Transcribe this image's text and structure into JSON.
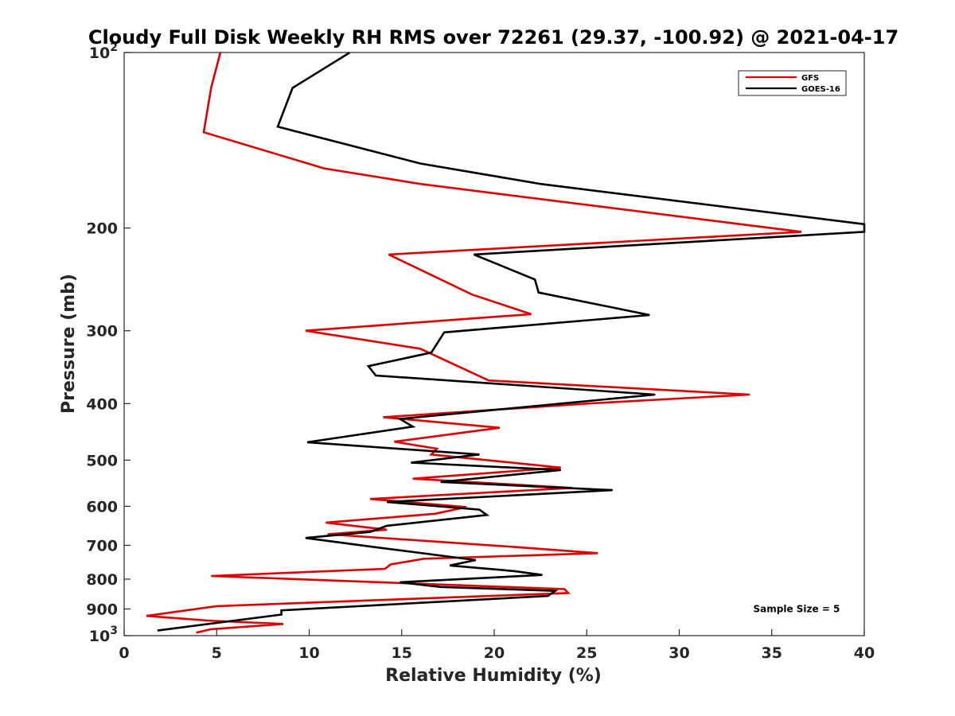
{
  "chart_data": {
    "type": "line",
    "title": "Cloudy Full Disk Weekly RH RMS over 72261 (29.37, -100.92) @ 2021-04-17",
    "xlabel": "Relative Humidity (%)",
    "ylabel": "Pressure (mb)",
    "xlim": [
      0,
      40
    ],
    "ylim": [
      100,
      1000
    ],
    "y_scale": "log",
    "y_reversed": true,
    "grid": false,
    "legend_position": "top-right",
    "x_ticks": [
      "0",
      "5",
      "10",
      "15",
      "20",
      "25",
      "30",
      "35",
      "40"
    ],
    "x_tick_values": [
      0,
      5,
      10,
      15,
      20,
      25,
      30,
      35,
      40
    ],
    "y_ticks": [
      {
        "value": 100,
        "base": "10",
        "exp": "2",
        "label": ""
      },
      {
        "value": 200,
        "label": "200"
      },
      {
        "value": 300,
        "label": "300"
      },
      {
        "value": 400,
        "label": "400"
      },
      {
        "value": 500,
        "label": "500"
      },
      {
        "value": 600,
        "label": "600"
      },
      {
        "value": 700,
        "label": "700"
      },
      {
        "value": 800,
        "label": "800"
      },
      {
        "value": 900,
        "label": "900"
      },
      {
        "value": 1000,
        "base": "10",
        "exp": "3",
        "label": ""
      }
    ],
    "series": [
      {
        "name": "GFS",
        "color": "#e00000",
        "points": [
          [
            5.2,
            100
          ],
          [
            4.7,
            115
          ],
          [
            4.3,
            137
          ],
          [
            10.8,
            158
          ],
          [
            16.0,
            168
          ],
          [
            36.6,
            203
          ],
          [
            14.3,
            222
          ],
          [
            18.8,
            260
          ],
          [
            22.0,
            281
          ],
          [
            9.8,
            300
          ],
          [
            16.0,
            322
          ],
          [
            19.7,
            365
          ],
          [
            33.8,
            386
          ],
          [
            25.0,
            400
          ],
          [
            14.0,
            422
          ],
          [
            20.3,
            440
          ],
          [
            14.6,
            465
          ],
          [
            16.9,
            478
          ],
          [
            16.6,
            489
          ],
          [
            23.6,
            515
          ],
          [
            15.6,
            538
          ],
          [
            24.2,
            558
          ],
          [
            13.3,
            583
          ],
          [
            18.5,
            602
          ],
          [
            16.8,
            618
          ],
          [
            10.9,
            640
          ],
          [
            14.2,
            658
          ],
          [
            11.0,
            670
          ],
          [
            21.2,
            705
          ],
          [
            25.6,
            722
          ],
          [
            16.2,
            738
          ],
          [
            14.4,
            755
          ],
          [
            14.1,
            768
          ],
          [
            4.7,
            790
          ],
          [
            23.8,
            832
          ],
          [
            24.0,
            845
          ],
          [
            5.0,
            890
          ],
          [
            1.2,
            925
          ],
          [
            4.5,
            942
          ],
          [
            8.6,
            955
          ],
          [
            4.7,
            975
          ],
          [
            3.9,
            988
          ]
        ]
      },
      {
        "name": "GOES-16",
        "color": "#000000",
        "points": [
          [
            12.2,
            100
          ],
          [
            9.1,
            115
          ],
          [
            8.3,
            134
          ],
          [
            16.0,
            155
          ],
          [
            22.5,
            168
          ],
          [
            40.0,
            197
          ],
          [
            40.0,
            203
          ],
          [
            18.9,
            222
          ],
          [
            22.2,
            245
          ],
          [
            22.4,
            258
          ],
          [
            28.4,
            282
          ],
          [
            17.3,
            302
          ],
          [
            16.6,
            327
          ],
          [
            13.2,
            345
          ],
          [
            13.6,
            358
          ],
          [
            28.7,
            386
          ],
          [
            14.9,
            425
          ],
          [
            15.6,
            438
          ],
          [
            9.9,
            466
          ],
          [
            19.2,
            489
          ],
          [
            15.5,
            505
          ],
          [
            23.6,
            520
          ],
          [
            17.1,
            545
          ],
          [
            26.4,
            563
          ],
          [
            14.2,
            590
          ],
          [
            19.2,
            608
          ],
          [
            19.6,
            621
          ],
          [
            14.2,
            648
          ],
          [
            13.3,
            664
          ],
          [
            9.8,
            680
          ],
          [
            13.7,
            706
          ],
          [
            19.0,
            742
          ],
          [
            17.6,
            758
          ],
          [
            21.1,
            775
          ],
          [
            22.6,
            787
          ],
          [
            14.9,
            810
          ],
          [
            17.1,
            825
          ],
          [
            23.3,
            838
          ],
          [
            22.9,
            855
          ],
          [
            8.5,
            905
          ],
          [
            8.5,
            920
          ],
          [
            1.8,
            980
          ]
        ]
      }
    ],
    "annotations": [
      {
        "text": "Sample Size = 5",
        "x": 34.0,
        "y": 900
      }
    ]
  }
}
